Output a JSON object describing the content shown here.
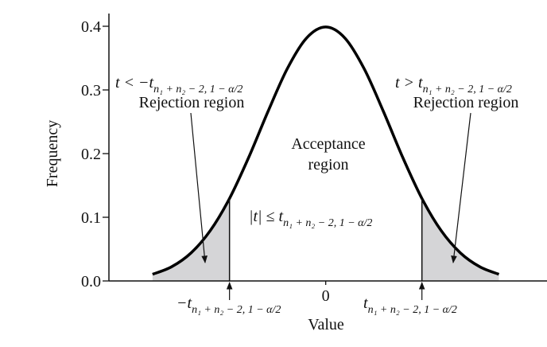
{
  "chart_data": {
    "type": "density",
    "y_label": "Frequency",
    "x_label": "Value",
    "x": [
      -2.7,
      -2.4,
      -2.1,
      -1.8,
      -1.5,
      -1.2,
      -0.9,
      -0.6,
      -0.3,
      0,
      0.3,
      0.6,
      0.9,
      1.2,
      1.5,
      1.8,
      2.1,
      2.4,
      2.7
    ],
    "values": [
      0.0104,
      0.0224,
      0.044,
      0.079,
      0.1295,
      0.1942,
      0.2661,
      0.3332,
      0.3814,
      0.3989,
      0.3814,
      0.3332,
      0.2661,
      0.1942,
      0.1295,
      0.079,
      0.044,
      0.0224,
      0.0104
    ],
    "color": "#000000",
    "shade_color": "#d5d5d7",
    "xlim": [
      -3.38,
      3.45
    ],
    "ylim": [
      0,
      0.42
    ],
    "xticks": [
      0
    ],
    "yticks": [
      {
        "value": 0,
        "label": "0.0"
      },
      0.1,
      0.2,
      0.3,
      0.4
    ],
    "critical_values": [
      -1.5,
      1.5
    ],
    "annotations": {
      "left_condition": {
        "text": "t < −t",
        "sub": "n₁ + n₂ − 2, 1 − α/2"
      },
      "left_region": "Rejection region",
      "right_condition": {
        "text": "t > t",
        "sub": "n₁ + n₂ − 2, 1 − α/2"
      },
      "right_region": "Rejection region",
      "acceptance_region": [
        "Acceptance",
        "region"
      ],
      "acceptance_condition": {
        "text": "|t| ≤ t",
        "sub": "n₁ + n₂ − 2, 1 − α/2"
      },
      "lower_critical": {
        "text": "−t",
        "sub": "n₁ + n₂ − 2, 1 − α/2"
      },
      "upper_critical": {
        "text": "t",
        "sub": "n₁ + n₂ − 2, 1 − α/2"
      }
    }
  }
}
